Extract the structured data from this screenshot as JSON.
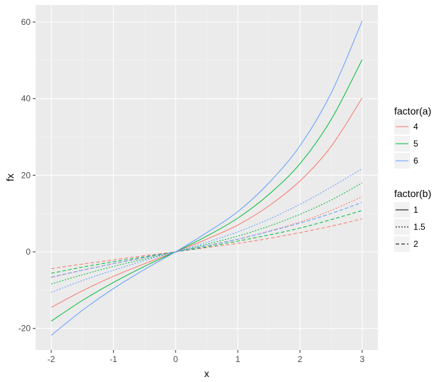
{
  "chart_data": {
    "type": "line",
    "xlabel": "x",
    "ylabel": "fx",
    "xlim": [
      -2,
      3
    ],
    "ylim": [
      -25,
      64
    ],
    "x_ticks": [
      "-2",
      "-1",
      "0",
      "1",
      "2",
      "3"
    ],
    "y_ticks": [
      "-20",
      "0",
      "20",
      "40",
      "60"
    ],
    "grid": true,
    "panel_background": "#ebebeb",
    "x": [
      -2,
      -1.5,
      -1,
      -0.5,
      0,
      0.5,
      1,
      1.5,
      2,
      2.5,
      3
    ],
    "series": [
      {
        "a": "4",
        "b": "1",
        "values": [
          -14.5,
          -10.2,
          -6.4,
          -3.1,
          0,
          3.3,
          7.0,
          12.0,
          18.5,
          27.5,
          40.2
        ]
      },
      {
        "a": "5",
        "b": "1",
        "values": [
          -18.1,
          -12.7,
          -8.0,
          -3.8,
          0,
          4.1,
          8.8,
          15.0,
          23.0,
          34.5,
          50.2
        ]
      },
      {
        "a": "6",
        "b": "1",
        "values": [
          -21.8,
          -15.3,
          -9.6,
          -4.6,
          0,
          5.0,
          10.5,
          18.0,
          27.7,
          41.4,
          60.3
        ]
      },
      {
        "a": "4",
        "b": "1.5",
        "values": [
          -6.7,
          -4.8,
          -3.1,
          -1.5,
          0,
          1.6,
          3.3,
          5.4,
          7.8,
          10.8,
          14.4
        ]
      },
      {
        "a": "5",
        "b": "1.5",
        "values": [
          -8.4,
          -6.0,
          -3.8,
          -1.9,
          0,
          2.0,
          4.1,
          6.7,
          9.8,
          13.5,
          18.0
        ]
      },
      {
        "a": "6",
        "b": "1.5",
        "values": [
          -10.6,
          -7.5,
          -4.8,
          -2.3,
          0,
          2.5,
          5.2,
          8.5,
          12.4,
          16.9,
          21.7
        ]
      },
      {
        "a": "4",
        "b": "2",
        "values": [
          -4.4,
          -3.2,
          -2.1,
          -1.0,
          0,
          1.1,
          2.2,
          3.5,
          5.0,
          6.7,
          8.6
        ]
      },
      {
        "a": "5",
        "b": "2",
        "values": [
          -5.6,
          -4.0,
          -2.6,
          -1.3,
          0,
          1.3,
          2.8,
          4.4,
          6.2,
          8.4,
          10.8
        ]
      },
      {
        "a": "6",
        "b": "2",
        "values": [
          -6.6,
          -4.8,
          -3.1,
          -1.5,
          0,
          1.6,
          3.3,
          5.3,
          7.5,
          10.0,
          12.9
        ]
      }
    ],
    "legend_color": {
      "title": "factor(a)",
      "entries": [
        {
          "label": "4",
          "color": "#f8766d"
        },
        {
          "label": "5",
          "color": "#00ba38"
        },
        {
          "label": "6",
          "color": "#619cff"
        }
      ]
    },
    "legend_linetype": {
      "title": "factor(b)",
      "entries": [
        {
          "label": "1",
          "dash": "none"
        },
        {
          "label": "1.5",
          "dash": "2,2"
        },
        {
          "label": "2",
          "dash": "5,3"
        }
      ]
    }
  }
}
